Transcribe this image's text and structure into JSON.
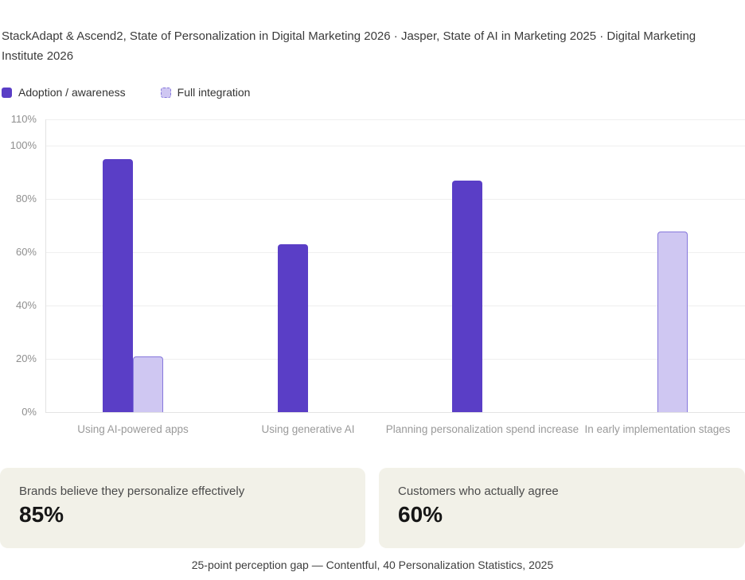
{
  "page": {
    "source_line": "StackAdapt & Ascend2, State of Personalization in Digital Marketing 2026 · Jasper, State of AI in Marketing 2025 · Digital Marketing Institute 2026",
    "footer": "25-point perception gap — Contentful, 40 Personalization Statistics, 2025"
  },
  "legend": {
    "items": [
      {
        "label": "Adoption / awareness"
      },
      {
        "label": "Full integration"
      }
    ]
  },
  "colors": {
    "adoption_fill": "#5a3ec6",
    "integration_fill": "#cfc7f2",
    "integration_border": "#8678dc",
    "grid_line": "#efefef",
    "axis_line": "#e3e3e3",
    "tick_text": "#8f8f8f",
    "category_text": "#9a9a9a",
    "card_bg": "#f2f1e8"
  },
  "chart_data": {
    "type": "bar",
    "title": "",
    "categories": [
      "Using AI-powered apps",
      "Using generative AI",
      "Planning personalization spend increase",
      "In early implementation stages"
    ],
    "series": [
      {
        "name": "Adoption / awareness",
        "style": "solid",
        "color": "#5a3ec6",
        "values": [
          95,
          63,
          87,
          null
        ]
      },
      {
        "name": "Full integration",
        "style": "outlined",
        "fill": "#cfc7f2",
        "border": "#8678dc",
        "values": [
          21,
          null,
          null,
          68
        ]
      }
    ],
    "xlabel": "",
    "ylabel": "",
    "ylim": [
      0,
      110
    ],
    "yticks": [
      0,
      20,
      40,
      60,
      80,
      100,
      110
    ],
    "ytick_format": "percent",
    "grid": true,
    "legend_position": "top-left"
  },
  "stat_cards": [
    {
      "label": "Brands believe they personalize effectively",
      "value": "85%"
    },
    {
      "label": "Customers who actually agree",
      "value": "60%"
    }
  ]
}
